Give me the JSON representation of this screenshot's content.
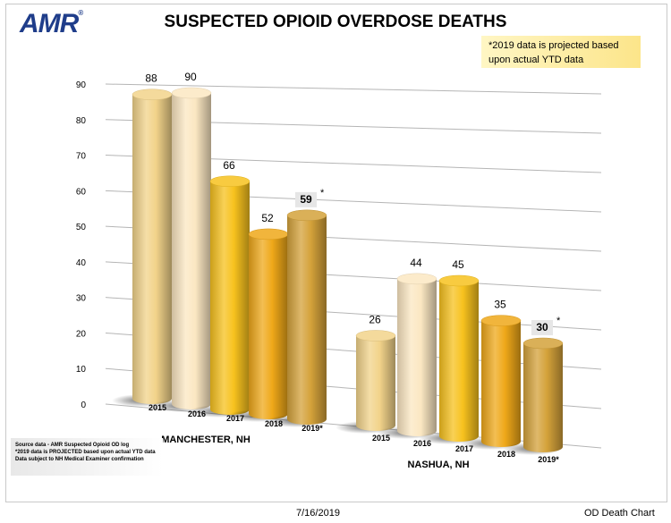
{
  "header": {
    "logo_text": "AMR",
    "logo_mark": "®"
  },
  "chart_data": {
    "type": "bar",
    "title": "SUSPECTED OPIOID OVERDOSE DEATHS",
    "categories": [
      "MANCHESTER, NH",
      "NASHUA, NH"
    ],
    "series": [
      {
        "name": "2015",
        "values": [
          88,
          26
        ]
      },
      {
        "name": "2016",
        "values": [
          90,
          44
        ]
      },
      {
        "name": "2017",
        "values": [
          66,
          45
        ]
      },
      {
        "name": "2018",
        "values": [
          52,
          35
        ]
      },
      {
        "name": "2019*",
        "values": [
          59,
          30
        ]
      }
    ],
    "yticks": [
      "0",
      "10",
      "20",
      "30",
      "40",
      "50",
      "60",
      "70",
      "80",
      "90"
    ],
    "ylim": [
      0,
      90
    ],
    "grid": true,
    "note": [
      "*2019 data is projected based",
      "upon actual YTD data"
    ],
    "projected_marker": "*",
    "colors": [
      "#f2d38a",
      "#fbe7c2",
      "#f7c21e",
      "#efa819",
      "#d4a23a"
    ]
  },
  "source_notes": [
    "Source data - AMR Suspected Opioid OD log",
    "*2019 data is PROJECTED based upon actual YTD data",
    "Data subject to NH Medical Examiner confirmation"
  ],
  "footer": {
    "date": "7/16/2019",
    "sheet_name": "OD Death Chart"
  }
}
